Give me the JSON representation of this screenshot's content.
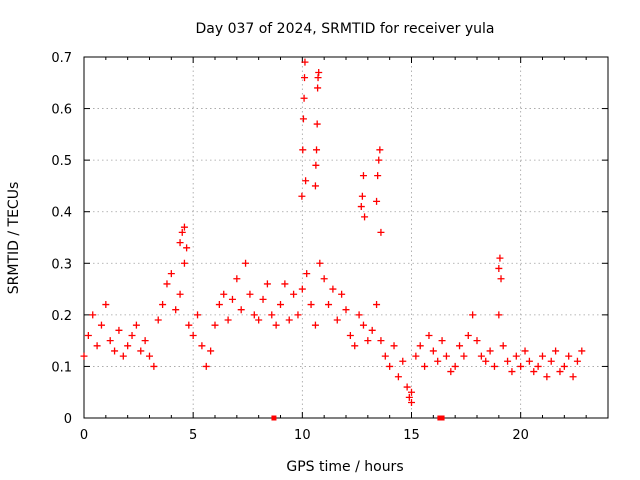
{
  "chart_data": {
    "type": "scatter",
    "title": "Day 037 of 2024, SRMTID for receiver yula",
    "xlabel": "GPS time / hours",
    "ylabel": "SRMTID / TECUs",
    "xlim": [
      0,
      24
    ],
    "ylim": [
      0,
      0.7
    ],
    "xticks": [
      0,
      5,
      10,
      15,
      20
    ],
    "yticks": [
      0,
      0.1,
      0.2,
      0.3,
      0.4,
      0.5,
      0.6,
      0.7
    ],
    "xtick_labels": [
      "0",
      "5",
      "10",
      "15",
      "20"
    ],
    "ytick_labels": [
      "0",
      "0.1",
      "0.2",
      "0.3",
      "0.4",
      "0.5",
      "0.6",
      "0.7"
    ],
    "grid": true,
    "marker": "+",
    "color": "#ff0000",
    "series": [
      {
        "name": "SRMTID",
        "x": [
          0.0,
          0.2,
          0.4,
          0.6,
          0.8,
          1.0,
          1.2,
          1.4,
          1.6,
          1.8,
          2.0,
          2.2,
          2.4,
          2.6,
          2.8,
          3.0,
          3.2,
          3.4,
          3.6,
          3.8,
          4.0,
          4.2,
          4.4,
          4.6,
          4.8,
          5.0,
          5.2,
          5.4,
          5.6,
          5.8,
          6.0,
          6.2,
          6.4,
          6.6,
          6.8,
          7.0,
          7.2,
          7.4,
          7.6,
          7.8,
          8.0,
          8.2,
          8.4,
          8.6,
          8.8,
          9.0,
          9.2,
          9.4,
          9.6,
          9.8,
          10.0,
          10.2,
          10.4,
          10.6,
          10.8,
          11.0,
          11.2,
          11.4,
          11.6,
          11.8,
          12.0,
          12.2,
          12.4,
          12.6,
          12.8,
          13.0,
          13.2,
          13.4,
          13.6,
          13.8,
          14.0,
          14.2,
          14.4,
          14.6,
          14.8,
          15.0,
          15.2,
          15.4,
          15.6,
          15.8,
          16.0,
          16.2,
          16.4,
          16.6,
          16.8,
          17.0,
          17.2,
          17.4,
          17.6,
          17.8,
          18.0,
          18.2,
          18.4,
          18.6,
          18.8,
          19.0,
          19.2,
          19.4,
          19.6,
          19.8,
          20.0,
          20.2,
          20.4,
          20.6,
          20.8,
          21.0,
          21.2,
          21.4,
          21.6,
          21.8,
          22.0,
          22.2,
          22.4,
          22.6,
          22.8,
          9.98,
          10.02,
          10.05,
          10.08,
          10.1,
          10.12,
          10.15,
          10.6,
          10.62,
          10.65,
          10.68,
          10.7,
          10.72,
          10.75,
          12.7,
          12.75,
          12.8,
          12.85,
          13.4,
          13.45,
          13.5,
          13.55,
          13.6,
          4.4,
          4.5,
          4.6,
          4.7,
          19.0,
          19.05,
          19.1,
          14.9,
          15.0,
          8.7,
          16.3,
          16.4
        ],
        "y": [
          0.12,
          0.16,
          0.2,
          0.14,
          0.18,
          0.22,
          0.15,
          0.13,
          0.17,
          0.12,
          0.14,
          0.16,
          0.18,
          0.13,
          0.15,
          0.12,
          0.1,
          0.19,
          0.22,
          0.26,
          0.28,
          0.21,
          0.24,
          0.3,
          0.18,
          0.16,
          0.2,
          0.14,
          0.1,
          0.13,
          0.18,
          0.22,
          0.24,
          0.19,
          0.23,
          0.27,
          0.21,
          0.3,
          0.24,
          0.2,
          0.19,
          0.23,
          0.26,
          0.2,
          0.18,
          0.22,
          0.26,
          0.19,
          0.24,
          0.2,
          0.25,
          0.28,
          0.22,
          0.18,
          0.3,
          0.27,
          0.22,
          0.25,
          0.19,
          0.24,
          0.21,
          0.16,
          0.14,
          0.2,
          0.18,
          0.15,
          0.17,
          0.22,
          0.15,
          0.12,
          0.1,
          0.14,
          0.08,
          0.11,
          0.06,
          0.05,
          0.12,
          0.14,
          0.1,
          0.16,
          0.13,
          0.11,
          0.15,
          0.12,
          0.09,
          0.1,
          0.14,
          0.12,
          0.16,
          0.2,
          0.15,
          0.12,
          0.11,
          0.13,
          0.1,
          0.2,
          0.14,
          0.11,
          0.09,
          0.12,
          0.1,
          0.13,
          0.11,
          0.09,
          0.1,
          0.12,
          0.08,
          0.11,
          0.13,
          0.09,
          0.1,
          0.12,
          0.08,
          0.11,
          0.13,
          0.43,
          0.52,
          0.58,
          0.62,
          0.66,
          0.69,
          0.46,
          0.45,
          0.49,
          0.52,
          0.57,
          0.64,
          0.66,
          0.67,
          0.41,
          0.43,
          0.47,
          0.39,
          0.42,
          0.47,
          0.5,
          0.52,
          0.36,
          0.34,
          0.36,
          0.37,
          0.33,
          0.29,
          0.31,
          0.27,
          0.04,
          0.03,
          0.0,
          0.0,
          0.0
        ]
      }
    ]
  }
}
